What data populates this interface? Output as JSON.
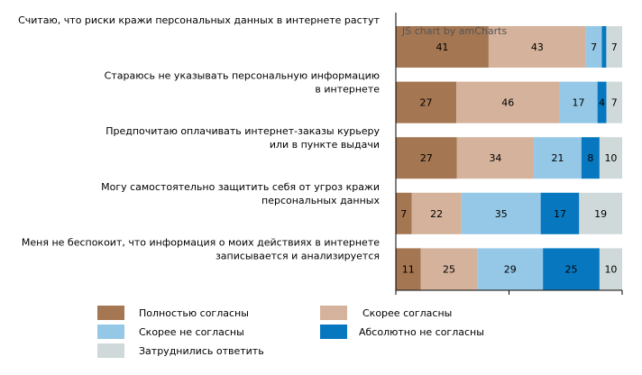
{
  "credit": "JS chart by amCharts",
  "colors": {
    "fully_agree": "#a47652",
    "rather_agree": "#d4b29b",
    "rather_disagree": "#95c8e6",
    "fully_disagree": "#0778c0",
    "undecided": "#d0d9d9",
    "axis": "#000000"
  },
  "chart_data": {
    "type": "bar",
    "orientation": "horizontal",
    "stacked": true,
    "stack_mode": "percent",
    "xlim": [
      0,
      100
    ],
    "legend_position": "bottom",
    "grid": false,
    "categories": [
      [
        "Считаю, что риски кражи персональных данных в интернете растут"
      ],
      [
        "Стараюсь не указывать персональную информацию",
        "в интернете"
      ],
      [
        "Предпочитаю оплачивать интернет-заказы курьеру",
        "или в пункте выдачи"
      ],
      [
        "Могу самостоятельно защитить себя от угроз кражи",
        "персональных данных"
      ],
      [
        "Меня не беспокоит, что информация о моих действиях в интернете",
        "записывается и анализируется"
      ]
    ],
    "series": [
      {
        "name": "Полностью согласны",
        "color_key": "fully_agree",
        "values": [
          41,
          27,
          27,
          7,
          11
        ],
        "labels": [
          "41",
          "27",
          "27",
          "7",
          "11"
        ]
      },
      {
        "name": "Скорее согласны",
        "color_key": "rather_agree",
        "values": [
          43,
          46,
          34,
          22,
          25
        ],
        "labels": [
          "43",
          "46",
          "34",
          "22",
          "25"
        ]
      },
      {
        "name": "Скорее не согласны",
        "color_key": "rather_disagree",
        "values": [
          7,
          17,
          21,
          35,
          29
        ],
        "labels": [
          "7",
          "17",
          "21",
          "35",
          "29"
        ]
      },
      {
        "name": "Абсолютно не согласны",
        "color_key": "fully_disagree",
        "values": [
          2,
          4,
          8,
          17,
          25
        ],
        "labels": [
          "",
          "4",
          "8",
          "17",
          "25"
        ]
      },
      {
        "name": "Затруднились ответить",
        "color_key": "undecided",
        "values": [
          7,
          7,
          10,
          19,
          10
        ],
        "labels": [
          "7",
          "7",
          "10",
          "19",
          "10"
        ]
      }
    ]
  }
}
